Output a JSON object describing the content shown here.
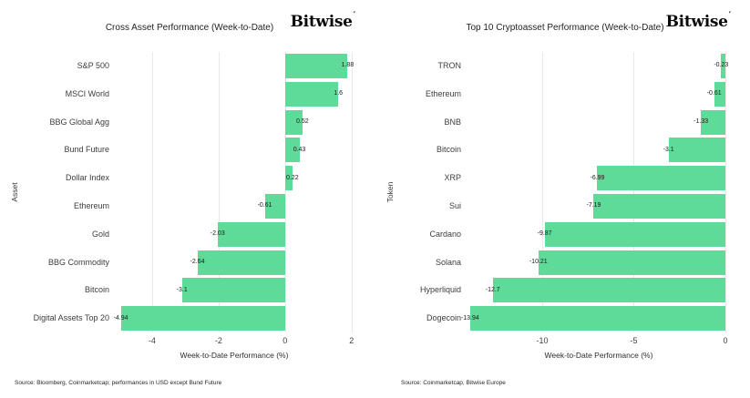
{
  "logo": {
    "text": "Bitwise",
    "mark": "′"
  },
  "colors": {
    "bar_green": "#5edb99",
    "gridline": "#e9e9e9",
    "label_text": "#3d3d3d",
    "title_text": "#1f1f1f"
  },
  "chart_data": [
    {
      "type": "bar",
      "orientation": "horizontal",
      "title": "Cross Asset Performance (Week-to-Date)",
      "ylabel": "Asset",
      "xlabel": "Week-to-Date Performance (%)",
      "source": "Source: Bloomberg, Coinmarketcap; performances in USD except Bund Future",
      "legend": "none",
      "grid": "vertical",
      "xlim": [
        -5.23,
        2.17
      ],
      "xticks": [
        -4,
        -2,
        0,
        2
      ],
      "categories": [
        "S&P 500",
        "MSCI World",
        "BBG Global Agg",
        "Bund Future",
        "Dollar Index",
        "Ethereum",
        "Gold",
        "BBG Commodity",
        "Bitcoin",
        "Digital Assets Top 20"
      ],
      "values": [
        1.88,
        1.6,
        0.52,
        0.43,
        0.22,
        -0.61,
        -2.03,
        -2.64,
        -3.1,
        -4.94
      ],
      "value_labels": [
        "1.88",
        "1.6",
        "0.52",
        "0.43",
        "0.22",
        "-0.61",
        "-2.03",
        "-2.64",
        "-3.1",
        "-4.94"
      ]
    },
    {
      "type": "bar",
      "orientation": "horizontal",
      "title": "Top 10 Cryptoasset Performance (Week-to-Date)",
      "ylabel": "Token",
      "xlabel": "Week-to-Date Performance (%)",
      "source": "Source: Coinmarketcap, Bitwise Europe",
      "legend": "none",
      "grid": "vertical",
      "xlim": [
        -14.23,
        0.4
      ],
      "xticks": [
        -10,
        -5,
        0
      ],
      "categories": [
        "TRON",
        "Ethereum",
        "BNB",
        "Bitcoin",
        "XRP",
        "Sui",
        "Cardano",
        "Solana",
        "Hyperliquid",
        "Dogecoin"
      ],
      "values": [
        -0.23,
        -0.61,
        -1.33,
        -3.1,
        -6.99,
        -7.19,
        -9.87,
        -10.21,
        -12.7,
        -13.94
      ],
      "value_labels": [
        "-0.23",
        "-0.61",
        "-1.33",
        "-3.1",
        "-6.99",
        "-7.19",
        "-9.87",
        "-10.21",
        "-12.7",
        "-13.94"
      ]
    }
  ]
}
